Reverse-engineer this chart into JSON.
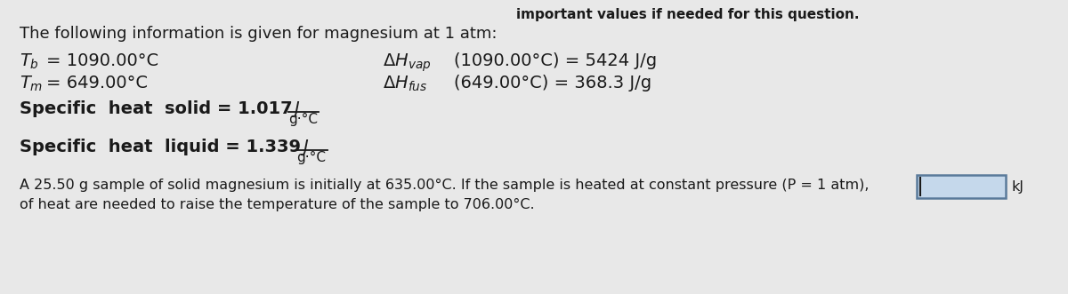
{
  "bg_color": "#e8e8e8",
  "title_partial": "important values if needed for this question.",
  "intro": "The following information is given for magnesium at 1 atm:",
  "tb_line": "$T_b = 1090.00°C$",
  "tm_line": "$T_m = 649.00°C$",
  "sh_solid_pre": "Specific  heat  solid = 1.017",
  "sh_solid_num": "J",
  "sh_solid_den": "g·°C",
  "sh_liquid_pre": "Specific  heat  liquid = 1.339",
  "sh_liquid_num": "J",
  "sh_liquid_den": "g·°C",
  "dh_vap": "Δ$H_{vap}$(1090.00°C) = 5424 J/g",
  "dh_fus": "Δ$H_{fus}$(649.00°C) = 368.3 J/g",
  "problem_line1": "A 25.50 g sample of solid magnesium is initially at 635.00°C. If the sample is heated at constant pressure (P = 1 atm),",
  "problem_line2": "of heat are needed to raise the temperature of the sample to 706.00°C.",
  "unit_kj": "kJ",
  "text_color": "#1a1a1a",
  "fs_intro": 13,
  "fs_body": 13,
  "fs_small": 11,
  "fs_prob": 11.5,
  "box_facecolor": "#c5d8eb",
  "box_edgecolor": "#5a7a9a"
}
